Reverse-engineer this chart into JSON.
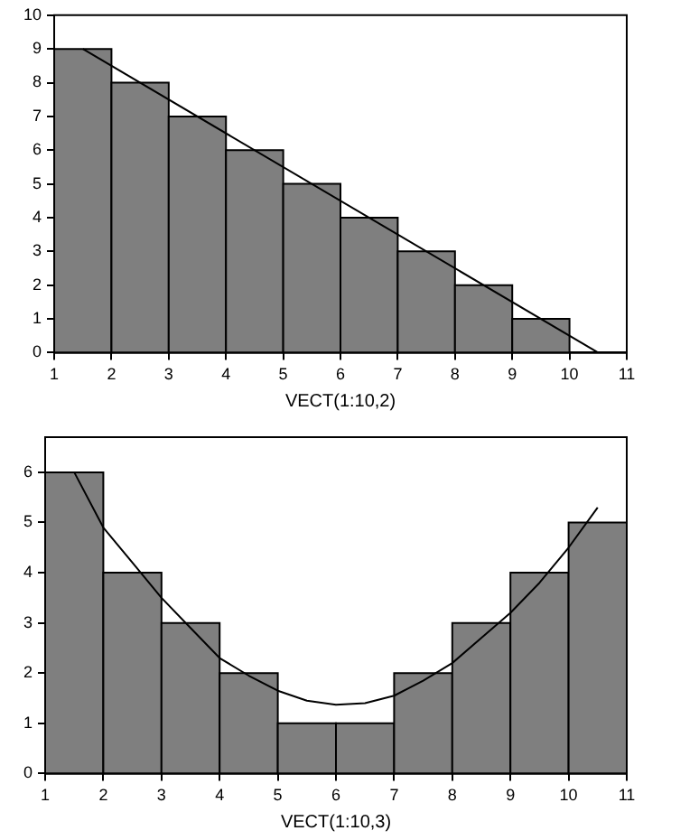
{
  "chart_data": [
    {
      "type": "histogram",
      "xlabel": "VECT(1:10,2)",
      "bins": [
        1,
        2,
        3,
        4,
        5,
        6,
        7,
        8,
        9,
        10,
        11
      ],
      "xlim": [
        1,
        11
      ],
      "xticks": [
        1,
        2,
        3,
        4,
        5,
        6,
        7,
        8,
        9,
        10,
        11
      ],
      "ylim": [
        0,
        10
      ],
      "yticks": [
        0,
        1,
        2,
        3,
        4,
        5,
        6,
        7,
        8,
        9,
        10
      ],
      "series": [
        {
          "color": "#7f7f7f",
          "values": [
            9,
            8,
            7,
            6,
            5,
            4,
            3,
            2,
            1,
            0
          ]
        },
        {
          "type": "line",
          "color": "#000000",
          "x": [
            1.5,
            10.5
          ],
          "values": [
            9,
            0
          ]
        }
      ]
    },
    {
      "type": "histogram",
      "xlabel": "VECT(1:10,3)",
      "bins": [
        1,
        2,
        3,
        4,
        5,
        6,
        7,
        8,
        9,
        10,
        11
      ],
      "xlim": [
        1,
        11
      ],
      "xticks": [
        1,
        2,
        3,
        4,
        5,
        6,
        7,
        8,
        9,
        10,
        11
      ],
      "ylim": [
        0,
        6.7
      ],
      "yticks": [
        0,
        1,
        2,
        3,
        4,
        5,
        6
      ],
      "series": [
        {
          "color": "#7f7f7f",
          "values": [
            6,
            4,
            3,
            2,
            1,
            1,
            2,
            3,
            4,
            5
          ]
        },
        {
          "type": "line",
          "color": "#000000",
          "x": [
            1.5,
            2,
            2.5,
            3,
            3.5,
            4,
            4.5,
            5,
            5.5,
            6,
            6.5,
            7,
            7.5,
            8,
            8.5,
            9,
            9.5,
            10,
            10.5
          ],
          "values": [
            6.0,
            4.9,
            4.2,
            3.5,
            2.9,
            2.3,
            1.95,
            1.65,
            1.45,
            1.37,
            1.4,
            1.55,
            1.85,
            2.2,
            2.7,
            3.2,
            3.8,
            4.5,
            5.3
          ]
        }
      ]
    }
  ]
}
